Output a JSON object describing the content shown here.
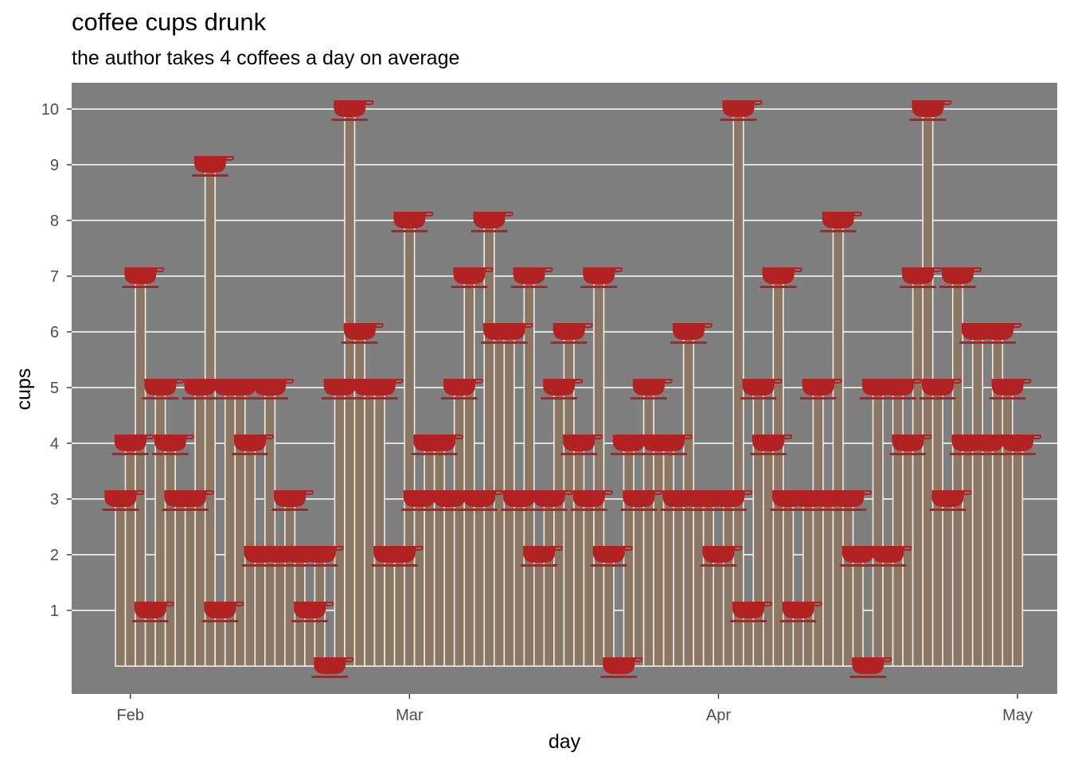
{
  "chart_data": {
    "type": "bar",
    "title": "coffee cups drunk",
    "subtitle": "the author takes 4 coffees a day on average",
    "xlabel": "day",
    "ylabel": "cups",
    "x_start_date": "2022-01-31",
    "x_ticks": [
      {
        "label": "Feb",
        "date": "2022-02-01"
      },
      {
        "label": "Mar",
        "date": "2022-03-01"
      },
      {
        "label": "Apr",
        "date": "2022-04-01"
      },
      {
        "label": "May",
        "date": "2022-05-01"
      }
    ],
    "y_ticks": [
      1,
      2,
      3,
      4,
      5,
      6,
      7,
      8,
      9,
      10
    ],
    "ylim": [
      -0.5,
      10.5
    ],
    "grid": true,
    "colors": {
      "panel": "#7f7f7f",
      "bar_fill": "#8b7765",
      "bar_outline": "#f0ebe6",
      "cup": "#b22222",
      "grid": "#ffffff"
    },
    "marker_icon": "coffee-cup-icon",
    "values": [
      3,
      4,
      7,
      1,
      5,
      4,
      3,
      3,
      5,
      9,
      1,
      5,
      5,
      4,
      2,
      5,
      2,
      3,
      2,
      1,
      2,
      0,
      5,
      10,
      6,
      5,
      5,
      2,
      2,
      8,
      3,
      4,
      4,
      3,
      5,
      7,
      3,
      8,
      6,
      6,
      3,
      7,
      2,
      3,
      5,
      6,
      4,
      3,
      7,
      2,
      0,
      4,
      3,
      5,
      4,
      4,
      3,
      6,
      3,
      3,
      2,
      3,
      10,
      1,
      5,
      4,
      7,
      3,
      1,
      3,
      5,
      3,
      8,
      3,
      2,
      0,
      5,
      2,
      5,
      4,
      7,
      10,
      5,
      3,
      7,
      4,
      6,
      4,
      6,
      5,
      4
    ]
  }
}
